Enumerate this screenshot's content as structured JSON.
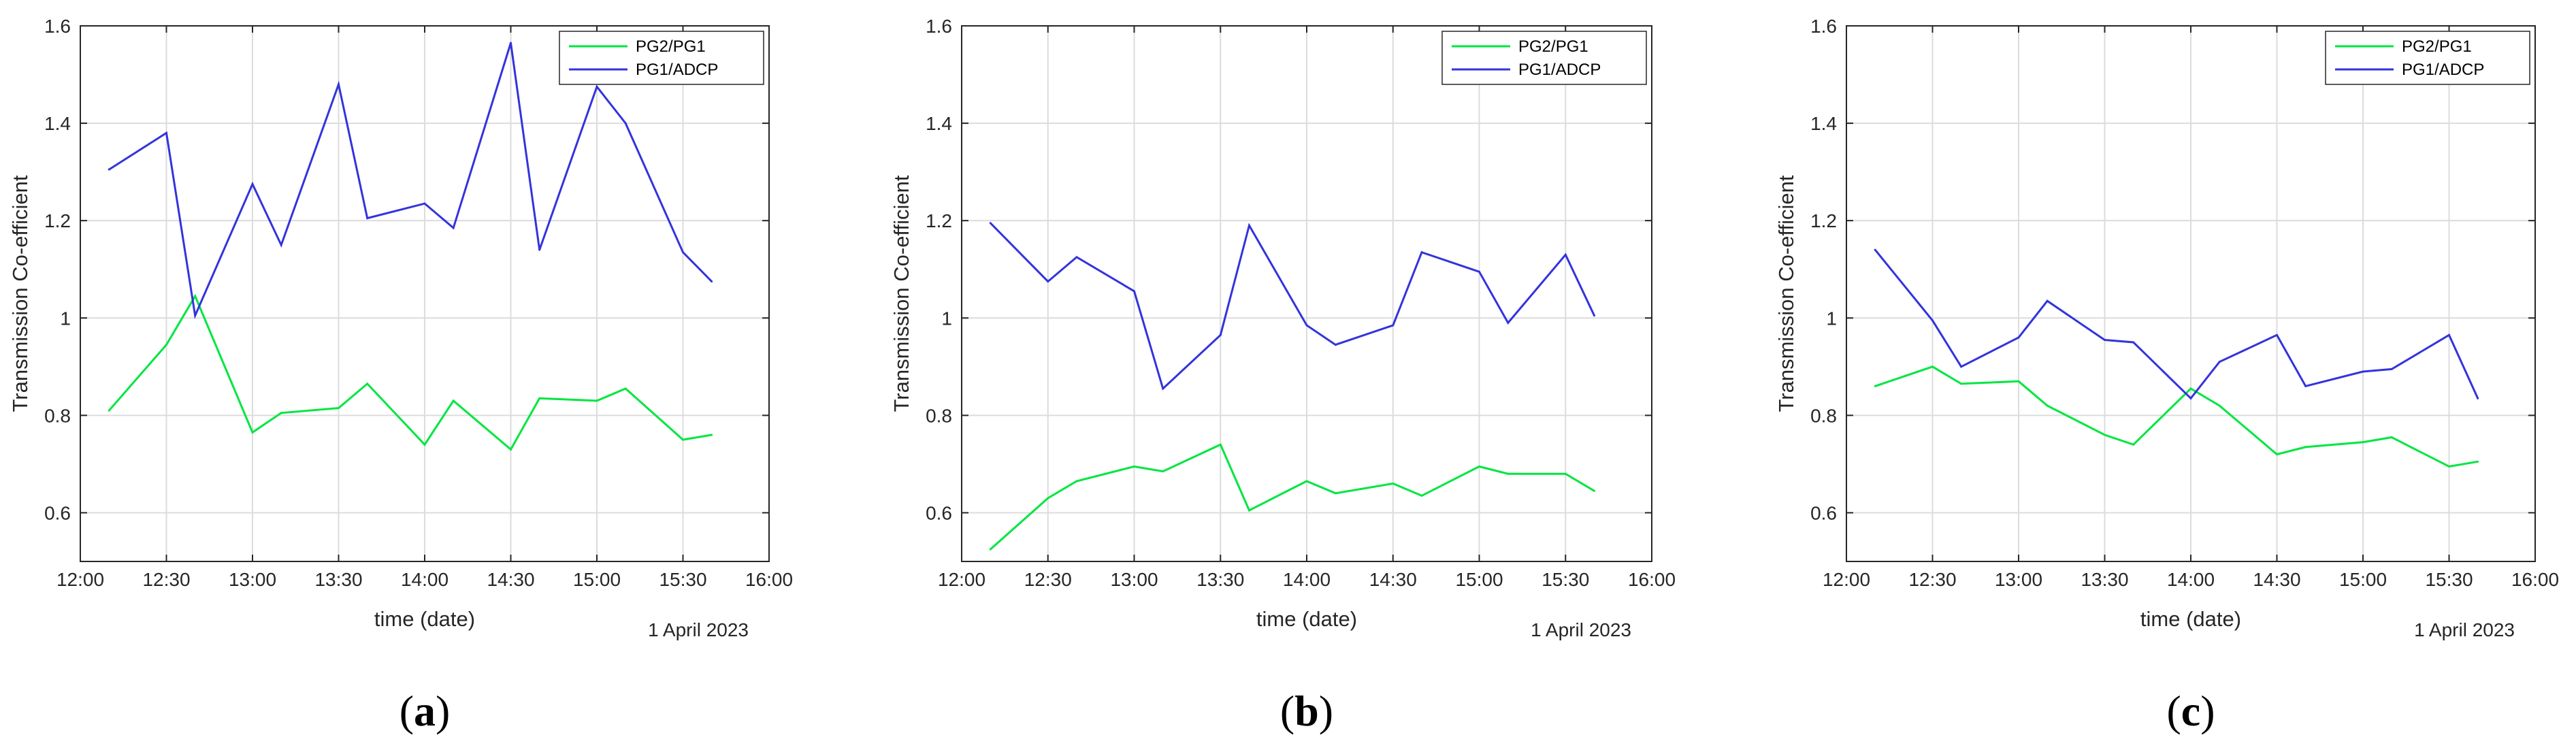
{
  "chart_data": [
    {
      "type": "line",
      "panel_label": "a",
      "xlabel": "time (date)",
      "ylabel": "Transmission Co-efficient",
      "date_note": "1 April 2023",
      "xlim": [
        "12:00",
        "16:00"
      ],
      "ylim": [
        0.5,
        1.6
      ],
      "x_ticks": [
        "12:00",
        "12:30",
        "13:00",
        "13:30",
        "14:00",
        "14:30",
        "15:00",
        "15:30",
        "16:00"
      ],
      "y_ticks": [
        "0.6",
        "0.8",
        "1",
        "1.2",
        "1.4",
        "1.6"
      ],
      "grid": true,
      "legend_position": "top-right",
      "series": [
        {
          "name": "PG2/PG1",
          "color": "#00e640",
          "x": [
            "12:10",
            "12:30",
            "12:40",
            "13:00",
            "13:10",
            "13:30",
            "13:40",
            "14:00",
            "14:10",
            "14:30",
            "14:40",
            "15:00",
            "15:10",
            "15:30",
            "15:40"
          ],
          "y": [
            0.81,
            0.945,
            1.045,
            0.765,
            0.805,
            0.815,
            0.865,
            0.74,
            0.83,
            0.73,
            0.835,
            0.83,
            0.855,
            0.75,
            0.76
          ]
        },
        {
          "name": "PG1/ADCP",
          "color": "#3333dd",
          "x": [
            "12:10",
            "12:30",
            "12:40",
            "13:00",
            "13:10",
            "13:30",
            "13:40",
            "14:00",
            "14:10",
            "14:30",
            "14:40",
            "15:00",
            "15:10",
            "15:30",
            "15:40"
          ],
          "y": [
            1.305,
            1.38,
            1.005,
            1.275,
            1.15,
            1.48,
            1.205,
            1.235,
            1.185,
            1.565,
            1.14,
            1.475,
            1.4,
            1.135,
            1.075
          ]
        }
      ]
    },
    {
      "type": "line",
      "panel_label": "b",
      "xlabel": "time (date)",
      "ylabel": "Transmission Co-efficient",
      "date_note": "1 April 2023",
      "xlim": [
        "12:00",
        "16:00"
      ],
      "ylim": [
        0.5,
        1.6
      ],
      "x_ticks": [
        "12:00",
        "12:30",
        "13:00",
        "13:30",
        "14:00",
        "14:30",
        "15:00",
        "15:30",
        "16:00"
      ],
      "y_ticks": [
        "0.6",
        "0.8",
        "1",
        "1.2",
        "1.4",
        "1.6"
      ],
      "grid": true,
      "legend_position": "top-right",
      "series": [
        {
          "name": "PG2/PG1",
          "color": "#00e640",
          "x": [
            "12:10",
            "12:30",
            "12:40",
            "13:00",
            "13:10",
            "13:30",
            "13:40",
            "14:00",
            "14:10",
            "14:30",
            "14:40",
            "15:00",
            "15:10",
            "15:30",
            "15:40"
          ],
          "y": [
            0.525,
            0.63,
            0.665,
            0.695,
            0.685,
            0.74,
            0.605,
            0.665,
            0.64,
            0.66,
            0.635,
            0.695,
            0.68,
            0.68,
            0.645
          ]
        },
        {
          "name": "PG1/ADCP",
          "color": "#3333dd",
          "x": [
            "12:10",
            "12:30",
            "12:40",
            "13:00",
            "13:10",
            "13:30",
            "13:40",
            "14:00",
            "14:10",
            "14:30",
            "14:40",
            "15:00",
            "15:10",
            "15:30",
            "15:40"
          ],
          "y": [
            1.195,
            1.075,
            1.125,
            1.055,
            0.855,
            0.965,
            1.19,
            0.985,
            0.945,
            0.985,
            1.135,
            1.095,
            0.99,
            1.13,
            1.005
          ]
        }
      ]
    },
    {
      "type": "line",
      "panel_label": "c",
      "xlabel": "time (date)",
      "ylabel": "Transmission Co-efficient",
      "date_note": "1 April 2023",
      "xlim": [
        "12:00",
        "16:00"
      ],
      "ylim": [
        0.5,
        1.6
      ],
      "x_ticks": [
        "12:00",
        "12:30",
        "13:00",
        "13:30",
        "14:00",
        "14:30",
        "15:00",
        "15:30",
        "16:00"
      ],
      "y_ticks": [
        "0.6",
        "0.8",
        "1",
        "1.2",
        "1.4",
        "1.6"
      ],
      "grid": true,
      "legend_position": "top-right",
      "series": [
        {
          "name": "PG2/PG1",
          "color": "#00e640",
          "x": [
            "12:10",
            "12:30",
            "12:40",
            "13:00",
            "13:10",
            "13:30",
            "13:40",
            "14:00",
            "14:10",
            "14:30",
            "14:40",
            "15:00",
            "15:10",
            "15:30",
            "15:40"
          ],
          "y": [
            0.86,
            0.9,
            0.865,
            0.87,
            0.82,
            0.76,
            0.74,
            0.855,
            0.82,
            0.72,
            0.735,
            0.745,
            0.755,
            0.695,
            0.705
          ]
        },
        {
          "name": "PG1/ADCP",
          "color": "#3333dd",
          "x": [
            "12:10",
            "12:30",
            "12:40",
            "13:00",
            "13:10",
            "13:30",
            "13:40",
            "14:00",
            "14:10",
            "14:30",
            "14:40",
            "15:00",
            "15:10",
            "15:30",
            "15:40"
          ],
          "y": [
            1.14,
            0.995,
            0.9,
            0.96,
            1.035,
            0.955,
            0.95,
            0.835,
            0.91,
            0.965,
            0.86,
            0.89,
            0.895,
            0.965,
            0.835
          ]
        }
      ]
    }
  ]
}
